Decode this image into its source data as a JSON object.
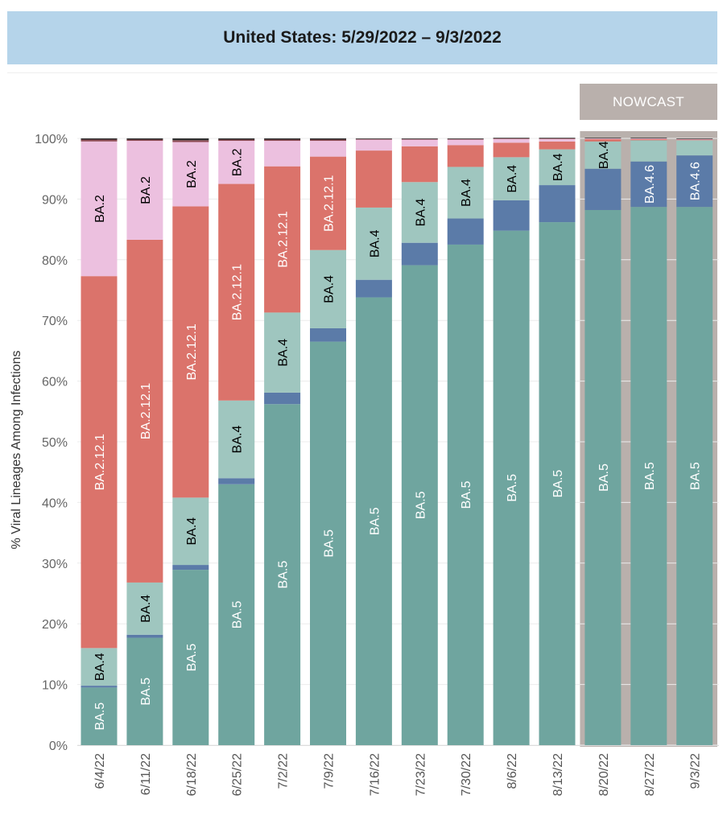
{
  "header": {
    "title": "United States: 5/29/2022 – 9/3/2022"
  },
  "nowcast": {
    "label": "NOWCAST"
  },
  "chart_data": {
    "type": "bar",
    "stacked": true,
    "title": "United States: 5/29/2022 – 9/3/2022",
    "ylabel": "% Viral Lineages Among Infections",
    "xlabel": "",
    "ylim": [
      0,
      100
    ],
    "yticks": [
      "0%",
      "10%",
      "20%",
      "30%",
      "40%",
      "50%",
      "60%",
      "70%",
      "80%",
      "90%",
      "100%"
    ],
    "grid": true,
    "nowcast_categories": [
      "8/20/22",
      "8/27/22",
      "9/3/22"
    ],
    "categories": [
      "6/4/22",
      "6/11/22",
      "6/18/22",
      "6/25/22",
      "7/2/22",
      "7/9/22",
      "7/16/22",
      "7/23/22",
      "7/30/22",
      "8/6/22",
      "8/13/22",
      "8/20/22",
      "8/27/22",
      "9/3/22"
    ],
    "series": [
      {
        "name": "BA.5",
        "color": "#6fa59f",
        "text_color": "#ffffff",
        "values": [
          9.5,
          17.7,
          28.9,
          43.0,
          56.2,
          66.5,
          73.8,
          79.1,
          82.5,
          84.8,
          86.2,
          88.2,
          88.7,
          88.7
        ]
      },
      {
        "name": "BA.4.6",
        "color": "#5b7ba8",
        "text_color": "#ffffff",
        "values": [
          0.3,
          0.5,
          0.8,
          1.0,
          1.9,
          2.2,
          2.9,
          3.7,
          4.3,
          5.0,
          6.1,
          6.8,
          7.5,
          8.5
        ],
        "labels": [
          "",
          "",
          "",
          "",
          "",
          "",
          "",
          "",
          "",
          "",
          "",
          "",
          "BA.4.6",
          "BA.4.6"
        ]
      },
      {
        "name": "BA.4",
        "color": "#9fc6bf",
        "text_color": "#000000",
        "values": [
          6.2,
          8.6,
          11.1,
          12.8,
          13.2,
          12.9,
          11.9,
          10.0,
          8.5,
          7.1,
          5.9,
          4.5,
          3.5,
          2.5
        ]
      },
      {
        "name": "BA.2.12.1",
        "color": "#db736b",
        "text_color": "#ffffff",
        "values": [
          61.3,
          56.5,
          48.0,
          35.7,
          24.1,
          15.4,
          9.4,
          5.9,
          3.6,
          2.4,
          1.3,
          0.4,
          0.2,
          0.1
        ],
        "labels": [
          "BA.2.12.1",
          "BA.2.12.1",
          "BA.2.12.1",
          "BA.2.12.1",
          "BA.2.12.1",
          "BA.2.12.1",
          "",
          "",
          "",
          "",
          "",
          "",
          "",
          ""
        ]
      },
      {
        "name": "BA.2",
        "color": "#ecc0df",
        "text_color": "#000000",
        "values": [
          22.2,
          16.3,
          10.6,
          7.1,
          4.2,
          2.6,
          1.8,
          1.1,
          0.9,
          0.6,
          0.4,
          0.1,
          0.1,
          0.1
        ],
        "labels": [
          "BA.2",
          "BA.2",
          "BA.2",
          "BA.2",
          "",
          "",
          "",
          "",
          "",
          "",
          "",
          "",
          "",
          ""
        ]
      },
      {
        "name": "",
        "color": "#8c4a52",
        "text_color": "#ffffff",
        "values": [
          0.3,
          0.2,
          0.3,
          0.2,
          0.2,
          0.2,
          0.1,
          0.1,
          0.1,
          0.1,
          0.1,
          0.0,
          0.0,
          0.0
        ]
      },
      {
        "name": "",
        "color": "#2e2e2e",
        "text_color": "#ffffff",
        "values": [
          0.2,
          0.2,
          0.3,
          0.2,
          0.2,
          0.2,
          0.1,
          0.1,
          0.1,
          0.1,
          0.1,
          0.1,
          0.1,
          0.1
        ]
      }
    ]
  }
}
